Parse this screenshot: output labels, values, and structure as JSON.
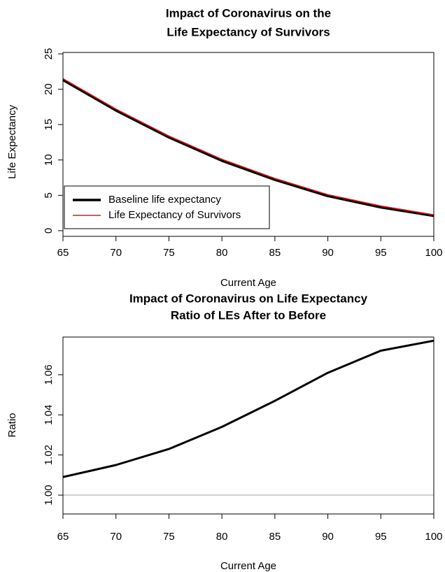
{
  "chart_data": [
    {
      "type": "line",
      "title": [
        "Impact of Coronavirus on the",
        "Life Expectancy of Survivors"
      ],
      "xlabel": "Current Age",
      "ylabel": "Life Expectancy",
      "x": [
        65,
        70,
        75,
        80,
        85,
        90,
        95,
        100
      ],
      "series": [
        {
          "name": "Baseline life expectancy",
          "color": "#000000",
          "linewidth": 3.5,
          "values": [
            21.3,
            17.0,
            13.2,
            9.9,
            7.2,
            4.9,
            3.3,
            2.1
          ]
        },
        {
          "name": "Life Expectancy of Survivors",
          "color": "#e8141c",
          "linewidth": 1.5,
          "values": [
            21.5,
            17.2,
            13.4,
            10.1,
            7.4,
            5.1,
            3.5,
            2.25
          ]
        }
      ],
      "xlim": [
        65,
        100
      ],
      "xticks": [
        65,
        70,
        75,
        80,
        85,
        90,
        95,
        100
      ],
      "ylim": [
        -0.8,
        25.2
      ],
      "yticks": [
        0,
        5,
        10,
        15,
        20,
        25
      ],
      "legend": "bottom-left"
    },
    {
      "type": "line",
      "title": [
        "Impact of Coronavirus on Life Expectancy",
        "Ratio of LEs After to Before"
      ],
      "xlabel": "Current Age",
      "ylabel": "Ratio",
      "x": [
        65,
        70,
        75,
        80,
        85,
        90,
        95,
        100
      ],
      "series": [
        {
          "color": "#000000",
          "linewidth": 3,
          "values": [
            1.009,
            1.015,
            1.023,
            1.034,
            1.047,
            1.061,
            1.072,
            1.077
          ]
        }
      ],
      "reference_line": {
        "value": 1,
        "color": "#c0c0c0"
      },
      "xlim": [
        65,
        100
      ],
      "xticks": [
        65,
        70,
        75,
        80,
        85,
        90,
        95,
        100
      ],
      "ylim": [
        0.9906,
        1.0788
      ],
      "yticks": [
        {
          "value": 1,
          "label": "1.00"
        },
        1.02,
        1.04,
        1.06
      ]
    }
  ]
}
